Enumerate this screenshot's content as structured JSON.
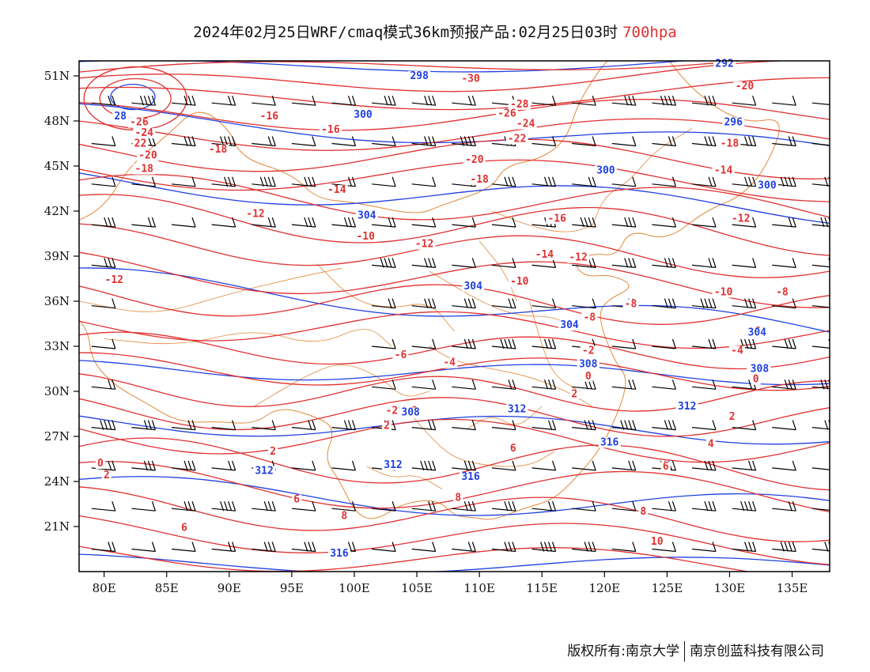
{
  "title": {
    "main": "2024年02月25日WRF/cmaq模式36km预报产品:02月25日03时",
    "level": "700hpa"
  },
  "colors": {
    "temperature": "#e03030",
    "height": "#2040e0",
    "wind": "#000000",
    "border": "#e08a3c",
    "level_text": "#e03030"
  },
  "axes": {
    "lat_labels": [
      "51N",
      "48N",
      "45N",
      "42N",
      "39N",
      "36N",
      "33N",
      "30N",
      "27N",
      "24N",
      "21N"
    ],
    "lon_labels": [
      "80E",
      "85E",
      "90E",
      "95E",
      "100E",
      "105E",
      "110E",
      "115E",
      "120E",
      "125E",
      "130E",
      "135E"
    ],
    "lat_values": [
      51,
      48,
      45,
      42,
      39,
      36,
      33,
      30,
      27,
      24,
      21
    ],
    "lon_values": [
      80,
      85,
      90,
      95,
      100,
      105,
      110,
      115,
      120,
      125,
      130,
      135
    ],
    "lon_range": [
      78,
      138
    ],
    "lat_range": [
      18,
      52
    ]
  },
  "temperature_labels": [
    {
      "text": "-30",
      "lon": 109.3,
      "lat": 50.6
    },
    {
      "text": "-28",
      "lon": 113.2,
      "lat": 48.9
    },
    {
      "text": "-26",
      "lon": 112.2,
      "lat": 48.3
    },
    {
      "text": "-24",
      "lon": 113.7,
      "lat": 47.6
    },
    {
      "text": "-22",
      "lon": 113.0,
      "lat": 46.6
    },
    {
      "text": "-20",
      "lon": 131.2,
      "lat": 50.1
    },
    {
      "text": "-18",
      "lon": 130.0,
      "lat": 46.3
    },
    {
      "text": "-14",
      "lon": 129.5,
      "lat": 44.5
    },
    {
      "text": "-12",
      "lon": 130.9,
      "lat": 41.3
    },
    {
      "text": "-26",
      "lon": 82.8,
      "lat": 47.7
    },
    {
      "text": "-24",
      "lon": 83.2,
      "lat": 47.0
    },
    {
      "text": "22",
      "lon": 82.9,
      "lat": 46.3
    },
    {
      "text": "-20",
      "lon": 83.5,
      "lat": 45.5
    },
    {
      "text": "-18",
      "lon": 83.2,
      "lat": 44.6
    },
    {
      "text": "-18",
      "lon": 89.1,
      "lat": 45.9
    },
    {
      "text": "-16",
      "lon": 93.2,
      "lat": 48.1
    },
    {
      "text": "-16",
      "lon": 98.1,
      "lat": 47.2
    },
    {
      "text": "-20",
      "lon": 109.6,
      "lat": 45.2
    },
    {
      "text": "-18",
      "lon": 110.0,
      "lat": 43.9
    },
    {
      "text": "-14",
      "lon": 98.6,
      "lat": 43.2
    },
    {
      "text": "-12",
      "lon": 92.1,
      "lat": 41.6
    },
    {
      "text": "-10",
      "lon": 100.9,
      "lat": 40.1
    },
    {
      "text": "-12",
      "lon": 105.6,
      "lat": 39.6
    },
    {
      "text": "-16",
      "lon": 116.2,
      "lat": 41.3
    },
    {
      "text": "-14",
      "lon": 115.2,
      "lat": 38.9
    },
    {
      "text": "-12",
      "lon": 117.9,
      "lat": 38.7
    },
    {
      "text": "-12",
      "lon": 80.8,
      "lat": 37.2
    },
    {
      "text": "-10",
      "lon": 113.2,
      "lat": 37.1
    },
    {
      "text": "-8",
      "lon": 118.8,
      "lat": 34.7
    },
    {
      "text": "-8",
      "lon": 122.1,
      "lat": 35.6
    },
    {
      "text": "-10",
      "lon": 129.5,
      "lat": 36.4
    },
    {
      "text": "-8",
      "lon": 134.2,
      "lat": 36.4
    },
    {
      "text": "-6",
      "lon": 132.0,
      "lat": 33.8
    },
    {
      "text": "-4",
      "lon": 130.6,
      "lat": 32.5
    },
    {
      "text": "-2",
      "lon": 132.0,
      "lat": 31.3
    },
    {
      "text": "0",
      "lon": 132.1,
      "lat": 30.6
    },
    {
      "text": "2",
      "lon": 130.2,
      "lat": 28.1
    },
    {
      "text": "-6",
      "lon": 103.7,
      "lat": 32.2
    },
    {
      "text": "-4",
      "lon": 107.6,
      "lat": 31.7
    },
    {
      "text": "-2",
      "lon": 118.7,
      "lat": 32.5
    },
    {
      "text": "0",
      "lon": 118.7,
      "lat": 30.8
    },
    {
      "text": "2",
      "lon": 117.6,
      "lat": 29.6
    },
    {
      "text": "-2",
      "lon": 103.0,
      "lat": 28.5
    },
    {
      "text": "0",
      "lon": 104.8,
      "lat": 28.5
    },
    {
      "text": "2",
      "lon": 102.6,
      "lat": 27.5
    },
    {
      "text": "4",
      "lon": 128.5,
      "lat": 26.3
    },
    {
      "text": "6",
      "lon": 124.9,
      "lat": 24.8
    },
    {
      "text": "6",
      "lon": 112.7,
      "lat": 26.0
    },
    {
      "text": "0",
      "lon": 79.7,
      "lat": 25.0
    },
    {
      "text": "2",
      "lon": 80.2,
      "lat": 24.2
    },
    {
      "text": "2",
      "lon": 93.5,
      "lat": 25.8
    },
    {
      "text": "8",
      "lon": 108.3,
      "lat": 22.7
    },
    {
      "text": "6",
      "lon": 95.4,
      "lat": 22.6
    },
    {
      "text": "8",
      "lon": 99.2,
      "lat": 21.5
    },
    {
      "text": "6",
      "lon": 86.4,
      "lat": 20.7
    },
    {
      "text": "8",
      "lon": 123.1,
      "lat": 21.8
    },
    {
      "text": "10",
      "lon": 124.2,
      "lat": 19.8
    }
  ],
  "height_labels": [
    {
      "text": "298",
      "lon": 105.2,
      "lat": 50.8
    },
    {
      "text": "292",
      "lon": 129.6,
      "lat": 51.6
    },
    {
      "text": "300",
      "lon": 100.7,
      "lat": 48.2
    },
    {
      "text": "296",
      "lon": 130.3,
      "lat": 47.7
    },
    {
      "text": "300",
      "lon": 120.1,
      "lat": 44.5
    },
    {
      "text": "300",
      "lon": 133.0,
      "lat": 43.5
    },
    {
      "text": "304",
      "lon": 101.0,
      "lat": 41.5
    },
    {
      "text": "304",
      "lon": 109.5,
      "lat": 36.8
    },
    {
      "text": "304",
      "lon": 117.2,
      "lat": 34.2
    },
    {
      "text": "304",
      "lon": 132.2,
      "lat": 33.7
    },
    {
      "text": "308",
      "lon": 118.7,
      "lat": 31.6
    },
    {
      "text": "308",
      "lon": 132.4,
      "lat": 31.3
    },
    {
      "text": "308",
      "lon": 104.5,
      "lat": 28.4
    },
    {
      "text": "312",
      "lon": 113.0,
      "lat": 28.6
    },
    {
      "text": "312",
      "lon": 126.6,
      "lat": 28.8
    },
    {
      "text": "316",
      "lon": 120.4,
      "lat": 26.4
    },
    {
      "text": "312",
      "lon": 92.8,
      "lat": 24.5
    },
    {
      "text": "312",
      "lon": 103.1,
      "lat": 24.9
    },
    {
      "text": "316",
      "lon": 109.3,
      "lat": 24.1
    },
    {
      "text": "316",
      "lon": 98.8,
      "lat": 19.0
    },
    {
      "text": "28",
      "lon": 81.3,
      "lat": 48.1
    }
  ],
  "copyright": {
    "left": "版权所有:南京大学",
    "right": "南京创蓝科技有限公司"
  }
}
